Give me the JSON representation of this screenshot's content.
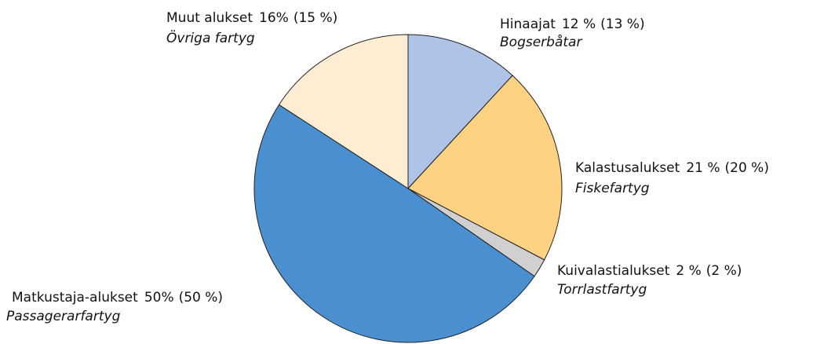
{
  "chart_data": {
    "type": "pie",
    "categories": [
      "Hinaajat",
      "Kalastusalukset",
      "Kuivalastialukset",
      "Matkustaja-alukset",
      "Muut alukset"
    ],
    "subcategories": [
      "Bogserbåtar",
      "Fiskefartyg",
      "Torrlastfartyg",
      "Passagerarfartyg",
      "Övriga fartyg"
    ],
    "values": [
      12,
      21,
      2,
      50,
      16
    ],
    "value_labels": [
      "12 %",
      "21 %",
      "2 %",
      "50%",
      "16%"
    ],
    "previous_values": [
      13,
      20,
      2,
      50,
      15
    ],
    "previous_value_labels": [
      "(13 %)",
      "(20 %)",
      "(2 %)",
      "(50 %)",
      "(15 %)"
    ],
    "colors": [
      "#aec3e6",
      "#fed283",
      "#d0d0d0",
      "#4a8fd0",
      "#feedd3"
    ]
  }
}
